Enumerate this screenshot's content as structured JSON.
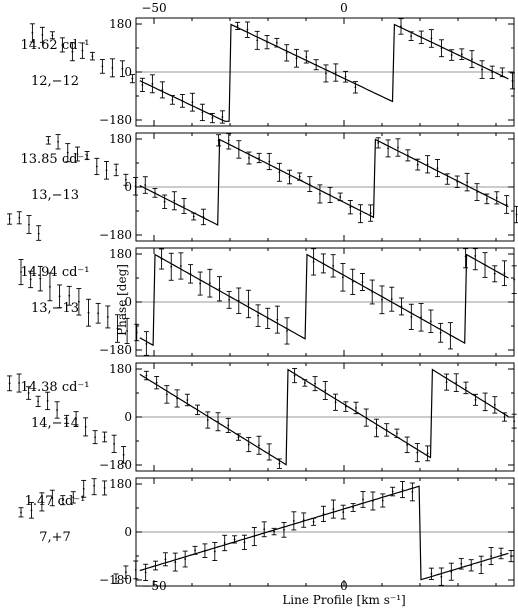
{
  "figure": {
    "xlabel": "Line Profile [km s⁻¹]",
    "ylabel": "Phase [deg]",
    "top_ticks": [
      "−50",
      "0",
      "50"
    ],
    "bottom_ticks": [
      "−50",
      "0",
      "50"
    ]
  },
  "chart_data": [
    {
      "type": "line",
      "frequency": "14.62 cd⁻¹",
      "mode": "12,−12",
      "ylim": [
        -200,
        200
      ],
      "xlim": [
        -100,
        100
      ],
      "yticks": [
        "180",
        "0",
        "−180"
      ],
      "model_jumps": [
        -85,
        -30,
        13,
        55
      ],
      "model_slope": -6.8,
      "data_segments": [
        [
          -82,
          -32
        ],
        [
          -28,
          3
        ],
        [
          15,
          47
        ],
        [
          54,
          78
        ]
      ]
    },
    {
      "type": "line",
      "frequency": "13.85 cd⁻¹",
      "mode": "13,−13",
      "ylim": [
        -200,
        200
      ],
      "xlim": [
        -100,
        100
      ],
      "yticks": [
        "180",
        "0",
        "−180"
      ],
      "model_jumps": [
        -78,
        -33,
        8,
        52
      ],
      "model_slope": -7.2,
      "data_segments": [
        [
          -88,
          -37
        ],
        [
          -33,
          7
        ],
        [
          9,
          48
        ],
        [
          55,
          78
        ]
      ]
    },
    {
      "type": "line",
      "frequency": "14.94 cd⁻¹",
      "mode": "13,−13",
      "ylim": [
        -200,
        200
      ],
      "xlim": [
        -100,
        100
      ],
      "yticks": [
        "180",
        "0",
        "−180"
      ],
      "model_jumps": [
        -93,
        -50,
        -10,
        32,
        78
      ],
      "model_slope": -8,
      "data_segments": [
        [
          -85,
          -52
        ],
        [
          -48,
          -15
        ],
        [
          -8,
          28
        ],
        [
          32,
          78
        ]
      ]
    },
    {
      "type": "line",
      "frequency": "14.38 cd⁻¹",
      "mode": "14,−14",
      "ylim": [
        -200,
        200
      ],
      "xlim": [
        -100,
        100
      ],
      "yticks": [
        "180",
        "0",
        "−180"
      ],
      "model_jumps": [
        -93,
        -56,
        -15,
        23,
        63
      ],
      "model_slope": -8.8,
      "data_segments": [
        [
          -88,
          -58
        ],
        [
          -52,
          -17
        ],
        [
          -13,
          22
        ],
        [
          27,
          60
        ],
        [
          66,
          82
        ]
      ]
    },
    {
      "type": "line",
      "frequency": "1.47 cd⁻¹",
      "mode": "7,+7",
      "ylim": [
        -200,
        200
      ],
      "xlim": [
        -100,
        100
      ],
      "yticks": [
        "180",
        "0",
        "−180"
      ],
      "model_jumps": [
        -62,
        20,
        86
      ],
      "model_slope": 4.3,
      "data_segments": [
        [
          -85,
          -63
        ],
        [
          -60,
          18
        ],
        [
          23,
          78
        ]
      ]
    }
  ]
}
